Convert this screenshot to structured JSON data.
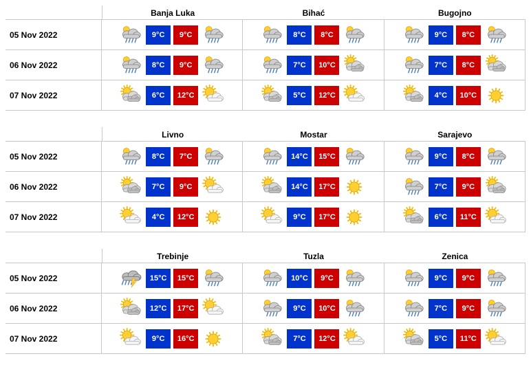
{
  "colors": {
    "low_bg": "#0033cc",
    "high_bg": "#cc0000",
    "text_on_temp": "#ffffff",
    "border": "#c8c8c8",
    "page_bg": "#ffffff",
    "date_text": "#000000"
  },
  "dates": [
    "05 Nov 2022",
    "06 Nov 2022",
    "07 Nov 2022"
  ],
  "degree_suffix": "°C",
  "icon_types": {
    "rain": "rain-cloud-sun",
    "partly": "partly-cloudy",
    "sunny": "sunny",
    "suncloud": "sun-behind-cloud",
    "storm": "thunderstorm"
  },
  "blocks": [
    {
      "cities": [
        {
          "name": "Banja Luka",
          "days": [
            {
              "icon_am": "rain",
              "low": 9,
              "high": 9,
              "icon_pm": "rain"
            },
            {
              "icon_am": "rain",
              "low": 8,
              "high": 9,
              "icon_pm": "rain"
            },
            {
              "icon_am": "partly",
              "low": 6,
              "high": 12,
              "icon_pm": "suncloud"
            }
          ]
        },
        {
          "name": "Bihać",
          "days": [
            {
              "icon_am": "rain",
              "low": 8,
              "high": 8,
              "icon_pm": "rain"
            },
            {
              "icon_am": "rain",
              "low": 7,
              "high": 10,
              "icon_pm": "partly"
            },
            {
              "icon_am": "partly",
              "low": 5,
              "high": 12,
              "icon_pm": "suncloud"
            }
          ]
        },
        {
          "name": "Bugojno",
          "days": [
            {
              "icon_am": "rain",
              "low": 9,
              "high": 8,
              "icon_pm": "rain"
            },
            {
              "icon_am": "rain",
              "low": 7,
              "high": 8,
              "icon_pm": "partly"
            },
            {
              "icon_am": "partly",
              "low": 4,
              "high": 10,
              "icon_pm": "sunny"
            }
          ]
        }
      ]
    },
    {
      "cities": [
        {
          "name": "Livno",
          "days": [
            {
              "icon_am": "rain",
              "low": 8,
              "high": 7,
              "icon_pm": "rain"
            },
            {
              "icon_am": "partly",
              "low": 7,
              "high": 9,
              "icon_pm": "suncloud"
            },
            {
              "icon_am": "suncloud",
              "low": 4,
              "high": 12,
              "icon_pm": "sunny"
            }
          ]
        },
        {
          "name": "Mostar",
          "days": [
            {
              "icon_am": "rain",
              "low": 14,
              "high": 15,
              "icon_pm": "rain"
            },
            {
              "icon_am": "partly",
              "low": 14,
              "high": 17,
              "icon_pm": "sunny"
            },
            {
              "icon_am": "suncloud",
              "low": 9,
              "high": 17,
              "icon_pm": "sunny"
            }
          ]
        },
        {
          "name": "Sarajevo",
          "days": [
            {
              "icon_am": "rain",
              "low": 9,
              "high": 8,
              "icon_pm": "rain"
            },
            {
              "icon_am": "rain",
              "low": 7,
              "high": 9,
              "icon_pm": "partly"
            },
            {
              "icon_am": "partly",
              "low": 6,
              "high": 11,
              "icon_pm": "suncloud"
            }
          ]
        }
      ]
    },
    {
      "cities": [
        {
          "name": "Trebinje",
          "days": [
            {
              "icon_am": "storm",
              "low": 15,
              "high": 15,
              "icon_pm": "rain"
            },
            {
              "icon_am": "partly",
              "low": 12,
              "high": 17,
              "icon_pm": "suncloud"
            },
            {
              "icon_am": "suncloud",
              "low": 9,
              "high": 16,
              "icon_pm": "sunny"
            }
          ]
        },
        {
          "name": "Tuzla",
          "days": [
            {
              "icon_am": "rain",
              "low": 10,
              "high": 9,
              "icon_pm": "rain"
            },
            {
              "icon_am": "rain",
              "low": 9,
              "high": 10,
              "icon_pm": "rain"
            },
            {
              "icon_am": "partly",
              "low": 7,
              "high": 12,
              "icon_pm": "suncloud"
            }
          ]
        },
        {
          "name": "Zenica",
          "days": [
            {
              "icon_am": "rain",
              "low": 9,
              "high": 9,
              "icon_pm": "rain"
            },
            {
              "icon_am": "rain",
              "low": 7,
              "high": 9,
              "icon_pm": "rain"
            },
            {
              "icon_am": "partly",
              "low": 5,
              "high": 11,
              "icon_pm": "suncloud"
            }
          ]
        }
      ]
    }
  ]
}
